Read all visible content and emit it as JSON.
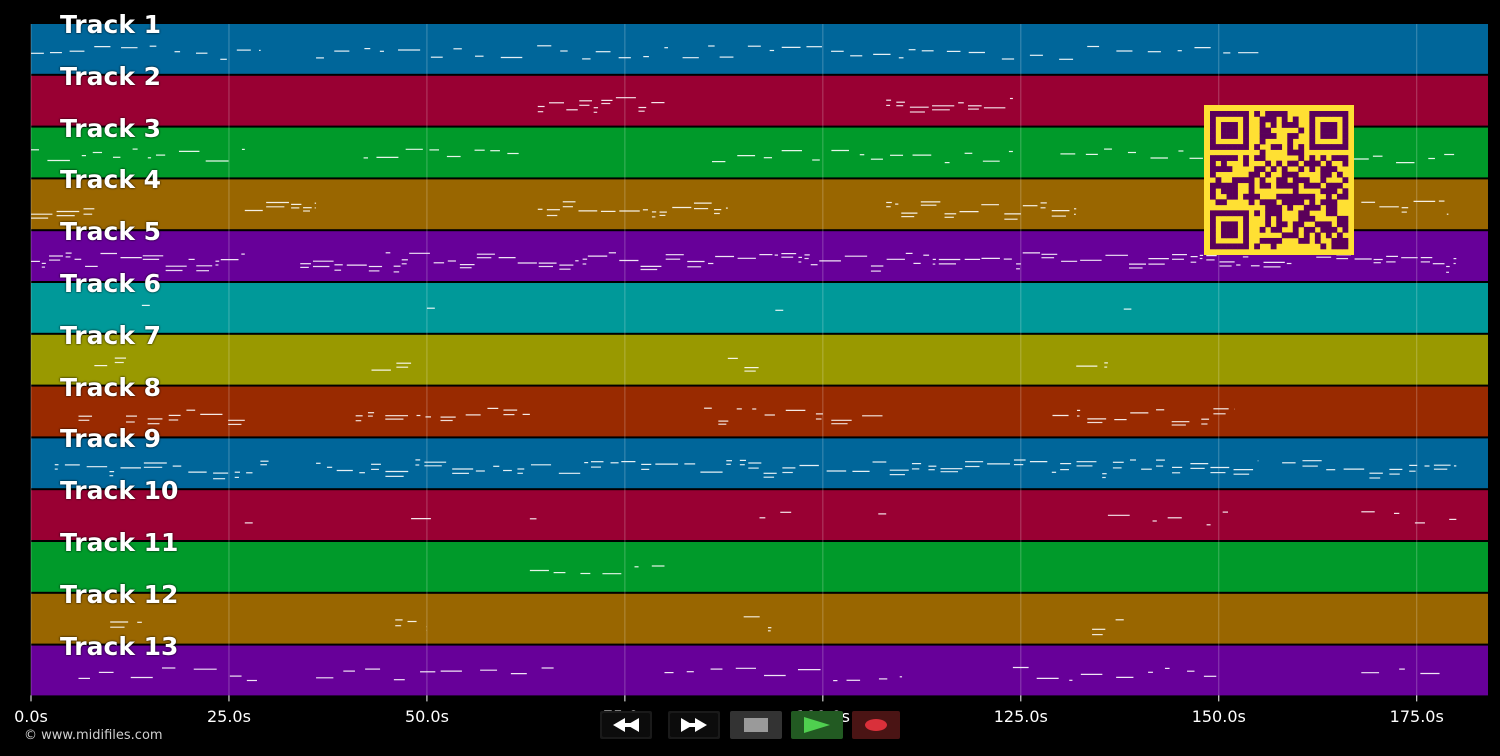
{
  "tracks": [
    {
      "label": "Track 1",
      "color": "#00669a"
    },
    {
      "label": "Track 2",
      "color": "#990033"
    },
    {
      "label": "Track 3",
      "color": "#009a2a"
    },
    {
      "label": "Track 4",
      "color": "#996600"
    },
    {
      "label": "Track 5",
      "color": "#670099"
    },
    {
      "label": "Track 6",
      "color": "#009999"
    },
    {
      "label": "Track 7",
      "color": "#999900"
    },
    {
      "label": "Track 8",
      "color": "#992a00"
    },
    {
      "label": "Track 9",
      "color": "#00669a"
    },
    {
      "label": "Track 10",
      "color": "#990033"
    },
    {
      "label": "Track 11",
      "color": "#009a2a"
    },
    {
      "label": "Track 12",
      "color": "#996600"
    },
    {
      "label": "Track 13",
      "color": "#670099"
    }
  ],
  "time_axis": {
    "max_seconds": 184,
    "ticks": [
      {
        "value": 0,
        "label": "0.0s"
      },
      {
        "value": 25,
        "label": "25.0s"
      },
      {
        "value": 50,
        "label": "50.0s"
      },
      {
        "value": 75,
        "label": "75.0s"
      },
      {
        "value": 100,
        "label": "100.0s"
      },
      {
        "value": 125,
        "label": "125.0s"
      },
      {
        "value": 150,
        "label": "150.0s"
      },
      {
        "value": 175,
        "label": "175.0s"
      }
    ]
  },
  "copyright": "© www.midifiles.com",
  "transport": {
    "rewind_icon": "rewind-icon",
    "ffwd_icon": "fast-forward-icon",
    "stop_icon": "stop-icon",
    "play_icon": "play-icon",
    "record_icon": "record-icon"
  },
  "colors": {
    "qr_fg": "#5a005a",
    "qr_bg": "#ffe033",
    "play": "#4fcf4f",
    "record": "#d9303a",
    "stop": "#9a9a9a"
  }
}
